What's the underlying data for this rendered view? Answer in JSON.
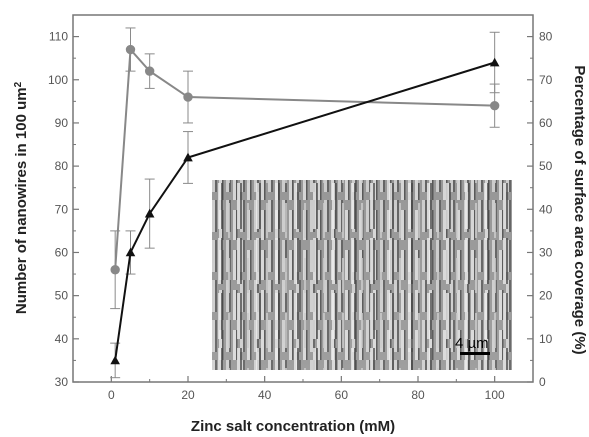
{
  "chart_data": {
    "type": "line",
    "xlabel": "Zinc salt concentration (mM)",
    "ylabel_left_prefix": "Number of nanowires in 100 um",
    "ylabel_left_superscript": "2",
    "ylabel_right": "Percentage of surface area coverage (%)",
    "xlim": [
      -10,
      110
    ],
    "ylim_left": [
      30,
      115
    ],
    "ylim_right": [
      0,
      85
    ],
    "x_ticks": [
      0,
      20,
      40,
      60,
      80,
      100
    ],
    "y_left_ticks": [
      30,
      40,
      50,
      60,
      70,
      80,
      90,
      100,
      110
    ],
    "y_right_ticks": [
      0,
      10,
      20,
      30,
      40,
      50,
      60,
      70,
      80
    ],
    "grid": false,
    "series": [
      {
        "axis": "left",
        "marker": "circle",
        "color": "#888888",
        "x": [
          1,
          5,
          10,
          20,
          100
        ],
        "y": [
          56,
          107,
          102,
          96,
          94
        ],
        "err": [
          9,
          5,
          4,
          6,
          5
        ]
      },
      {
        "axis": "right",
        "marker": "triangle",
        "color": "#111111",
        "x": [
          1,
          5,
          10,
          20,
          100
        ],
        "y": [
          5,
          30,
          39,
          52,
          74
        ],
        "err": [
          4,
          5,
          8,
          6,
          7
        ]
      }
    ]
  },
  "inset": {
    "scale_bar_label": "4 µm"
  }
}
